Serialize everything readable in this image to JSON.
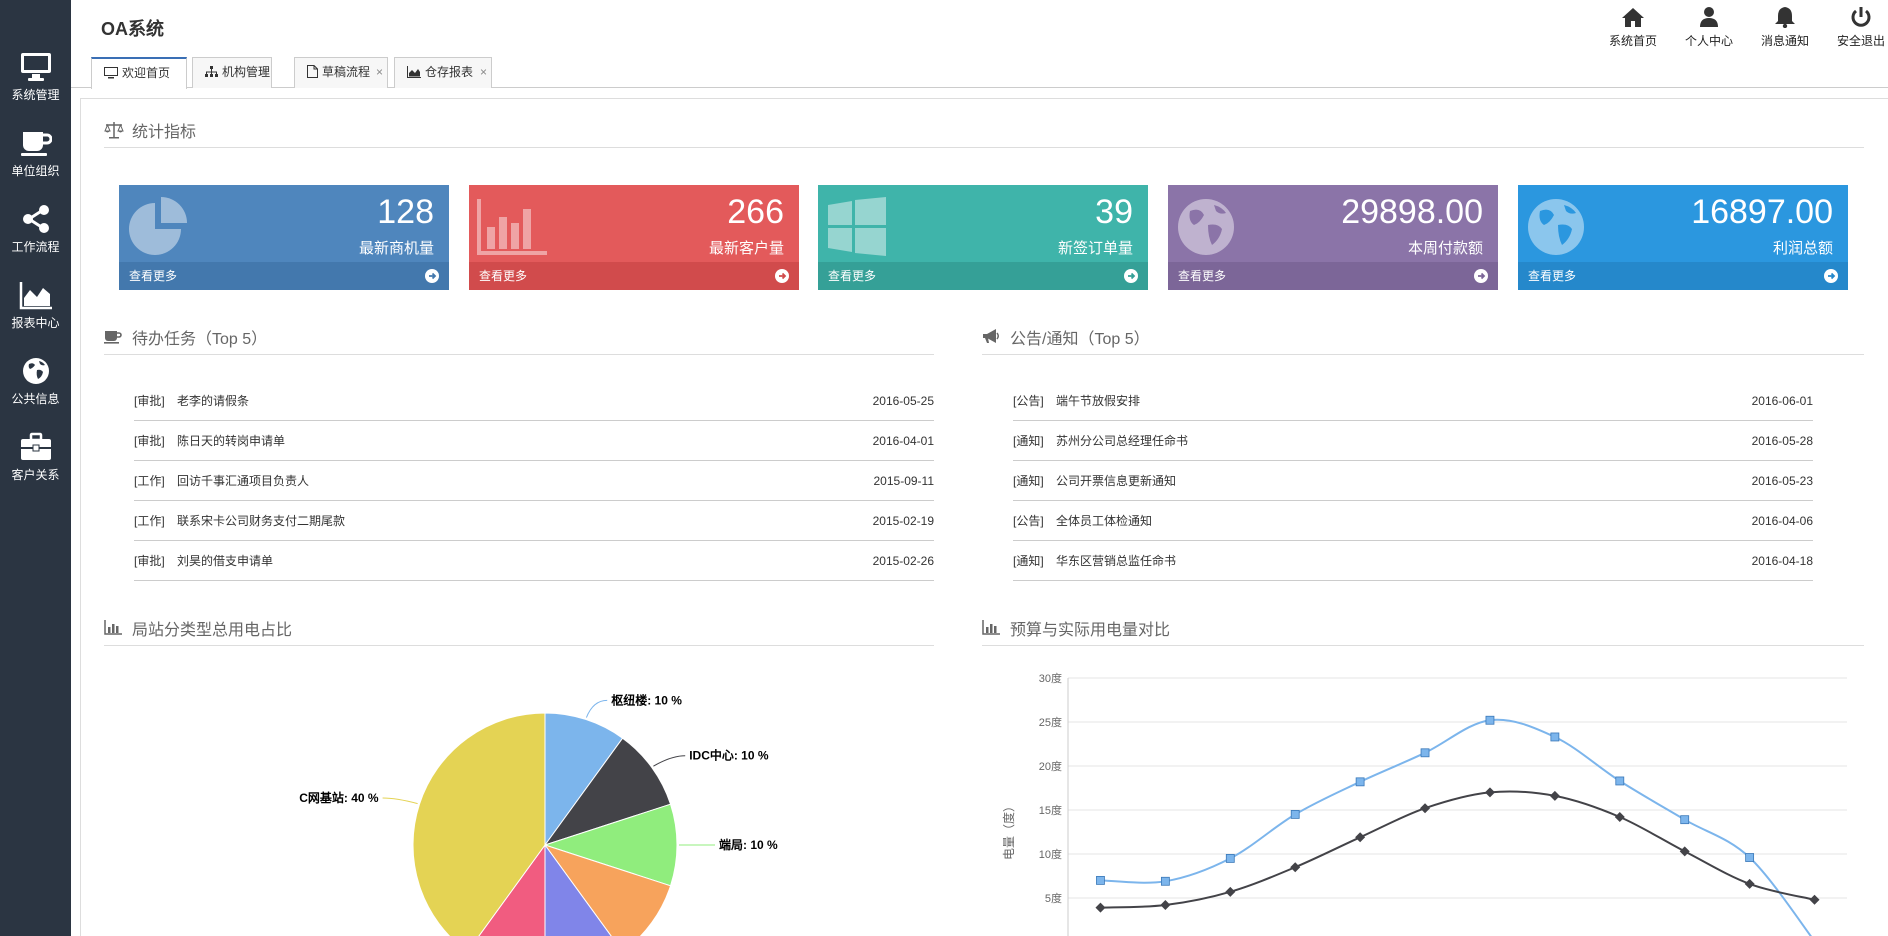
{
  "app_title": "OA系统",
  "sidebar": [
    {
      "label": "系统管理",
      "icon": "monitor-icon"
    },
    {
      "label": "单位组织",
      "icon": "coffee-cup-icon"
    },
    {
      "label": "工作流程",
      "icon": "share-icon"
    },
    {
      "label": "报表中心",
      "icon": "area-chart-icon"
    },
    {
      "label": "公共信息",
      "icon": "globe-icon"
    },
    {
      "label": "客户关系",
      "icon": "briefcase-icon"
    }
  ],
  "top_tools": [
    {
      "label": "系统首页",
      "icon": "home-icon"
    },
    {
      "label": "个人中心",
      "icon": "user-icon"
    },
    {
      "label": "消息通知",
      "icon": "bell-icon"
    },
    {
      "label": "安全退出",
      "icon": "power-icon"
    }
  ],
  "tabs": [
    {
      "label": "欢迎首页",
      "icon": "desktop-icon",
      "active": true,
      "close": ""
    },
    {
      "label": "机构管理",
      "icon": "sitemap-icon",
      "active": false,
      "close": "×"
    },
    {
      "label": "草稿流程",
      "icon": "file-icon",
      "active": false,
      "close": "×"
    },
    {
      "label": "仓存报表",
      "icon": "area-chart-icon",
      "active": false,
      "close": "×"
    }
  ],
  "stats_section": {
    "title": "统计指标",
    "icon": "balance-scale-icon"
  },
  "stat_cards": [
    {
      "value": "128",
      "label": "最新商机量",
      "more": "查看更多",
      "color": "#4f86bd",
      "foot_color": "#4378ad",
      "icon": "pie-chart-icon"
    },
    {
      "value": "266",
      "label": "最新客户量",
      "more": "查看更多",
      "color": "#e35a5b",
      "foot_color": "#d14b4c",
      "icon": "bar-chart-icon"
    },
    {
      "value": "39",
      "label": "新签订单量",
      "more": "查看更多",
      "color": "#3fb4aa",
      "foot_color": "#35a097",
      "icon": "windows-icon"
    },
    {
      "value": "29898.00",
      "label": "本周付款额",
      "more": "查看更多",
      "color": "#8b74a8",
      "foot_color": "#7c6698",
      "icon": "globe-icon"
    },
    {
      "value": "16897.00",
      "label": "利润总额",
      "more": "查看更多",
      "color": "#2b97df",
      "foot_color": "#2588cb",
      "icon": "globe-icon"
    }
  ],
  "tasks": {
    "title": "待办任务（Top 5）",
    "icon": "coffee-cup-icon",
    "items": [
      {
        "type": "[审批]",
        "title": "老李的请假条",
        "date": "2016-05-25"
      },
      {
        "type": "[审批]",
        "title": "陈日天的转岗申请单",
        "date": "2016-04-01"
      },
      {
        "type": "[工作]",
        "title": "回访千事汇通项目负责人",
        "date": "2015-09-11"
      },
      {
        "type": "[工作]",
        "title": "联系宋卡公司财务支付二期尾款",
        "date": "2015-02-19"
      },
      {
        "type": "[审批]",
        "title": "刘昊的借支申请单",
        "date": "2015-02-26"
      }
    ]
  },
  "notices": {
    "title": "公告/通知（Top 5）",
    "icon": "bullhorn-icon",
    "items": [
      {
        "type": "[公告]",
        "title": "端午节放假安排",
        "date": "2016-06-01"
      },
      {
        "type": "[通知]",
        "title": "苏州分公司总经理任命书",
        "date": "2016-05-28"
      },
      {
        "type": "[通知]",
        "title": "公司开票信息更新通知",
        "date": "2016-05-23"
      },
      {
        "type": "[公告]",
        "title": "全体员工体检通知",
        "date": "2016-04-06"
      },
      {
        "type": "[通知]",
        "title": "华东区营销总监任命书",
        "date": "2016-04-18"
      }
    ]
  },
  "pie_section": {
    "title": "局站分类型总用电占比",
    "icon": "bar-chart-icon"
  },
  "line_section": {
    "title": "预算与实际用电量对比",
    "icon": "bar-chart-icon"
  },
  "chart_data": [
    {
      "type": "pie",
      "title": "",
      "slices": [
        {
          "name": "枢纽楼",
          "value": 10,
          "label": "枢纽楼: 10 %",
          "color": "#7cb5ec"
        },
        {
          "name": "IDC中心",
          "value": 10,
          "label": "IDC中心: 10 %",
          "color": "#434348"
        },
        {
          "name": "端局",
          "value": 10,
          "label": "端局: 10 %",
          "color": "#90ed7d"
        },
        {
          "name": "",
          "value": 10,
          "label": "",
          "color": "#f7a35c"
        },
        {
          "name": "",
          "value": 10,
          "label": "",
          "color": "#8085e9"
        },
        {
          "name": "",
          "value": 10,
          "label": "",
          "color": "#f15c80"
        },
        {
          "name": "C网基站",
          "value": 40,
          "label": "C网基站: 40 %",
          "color": "#e4d354"
        }
      ]
    },
    {
      "type": "line",
      "title": "",
      "ylabel": "电量（度）",
      "yticks": [
        {
          "v": 5,
          "label": "5度"
        },
        {
          "v": 10,
          "label": "10度"
        },
        {
          "v": 15,
          "label": "15度"
        },
        {
          "v": 20,
          "label": "20度"
        },
        {
          "v": 25,
          "label": "25度"
        },
        {
          "v": 30,
          "label": "30度"
        }
      ],
      "ylim": [
        0,
        30
      ],
      "grid": true,
      "series": [
        {
          "name": "",
          "color": "#7cb5ec",
          "marker": "square",
          "values": [
            7.0,
            6.9,
            9.5,
            14.5,
            18.2,
            21.5,
            25.2,
            23.3,
            18.3,
            13.9,
            9.6,
            0.1
          ]
        },
        {
          "name": "",
          "color": "#434348",
          "marker": "diamond",
          "values": [
            3.9,
            4.2,
            5.7,
            8.5,
            11.9,
            15.2,
            17.0,
            16.6,
            14.2,
            10.3,
            6.6,
            4.8
          ]
        }
      ]
    }
  ]
}
